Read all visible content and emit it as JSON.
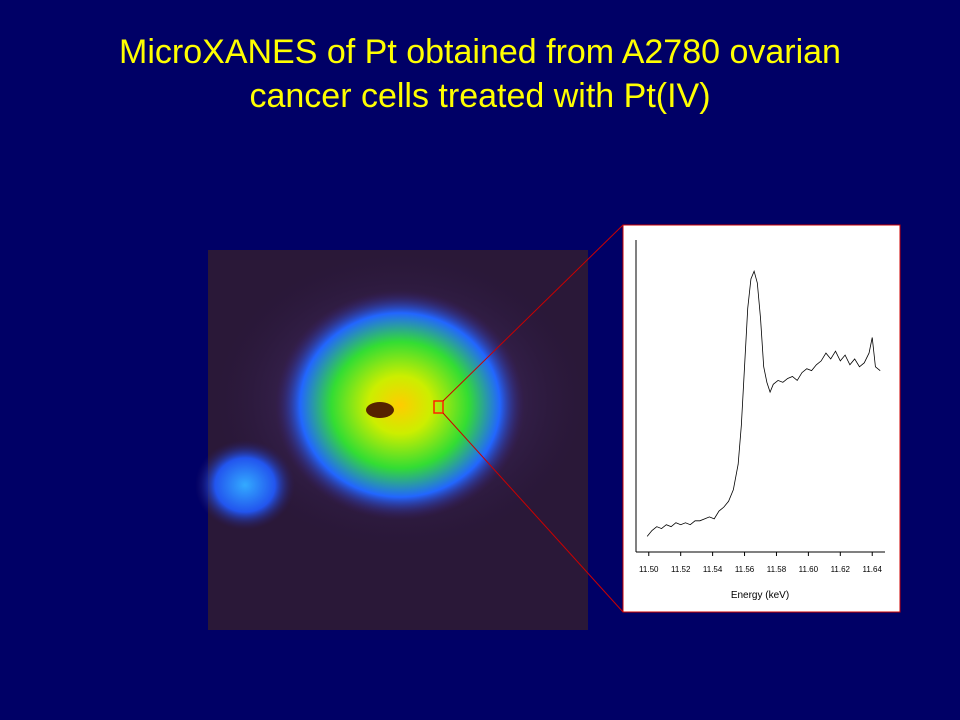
{
  "chart_data": {
    "type": "line",
    "title": "MicroXANES of Pt obtained from A2780 ovarian cancer cells treated with Pt(IV)",
    "x_label": "Energy (keV)",
    "x": [
      11.499,
      11.502,
      11.505,
      11.508,
      11.511,
      11.514,
      11.517,
      11.52,
      11.523,
      11.526,
      11.529,
      11.532,
      11.535,
      11.538,
      11.541,
      11.544,
      11.547,
      11.55,
      11.553,
      11.556,
      11.558,
      11.56,
      11.562,
      11.564,
      11.566,
      11.568,
      11.57,
      11.572,
      11.574,
      11.576,
      11.578,
      11.581,
      11.584,
      11.587,
      11.59,
      11.593,
      11.596,
      11.599,
      11.602,
      11.605,
      11.608,
      11.611,
      11.614,
      11.617,
      11.62,
      11.623,
      11.626,
      11.629,
      11.632,
      11.635,
      11.638,
      11.64,
      11.642,
      11.645
    ],
    "series": [
      {
        "color": "#000000",
        "values": [
          0.08,
          0.11,
          0.13,
          0.12,
          0.14,
          0.13,
          0.15,
          0.14,
          0.15,
          0.14,
          0.16,
          0.16,
          0.17,
          0.18,
          0.17,
          0.21,
          0.23,
          0.26,
          0.32,
          0.45,
          0.65,
          0.95,
          1.25,
          1.4,
          1.44,
          1.38,
          1.2,
          0.95,
          0.87,
          0.82,
          0.86,
          0.88,
          0.87,
          0.89,
          0.9,
          0.88,
          0.92,
          0.94,
          0.93,
          0.96,
          0.98,
          1.02,
          0.99,
          1.03,
          0.98,
          1.01,
          0.96,
          0.99,
          0.95,
          0.97,
          1.02,
          1.1,
          0.95,
          0.93
        ]
      }
    ],
    "xlim": [
      11.492,
      11.648
    ],
    "ylim": [
      0,
      1.6
    ],
    "xticks": [
      {
        "value": 11.5,
        "label": "11.50"
      },
      {
        "value": 11.52,
        "label": "11.52"
      },
      {
        "value": 11.54,
        "label": "11.54"
      },
      {
        "value": 11.56,
        "label": "11.56"
      },
      {
        "value": 11.58,
        "label": "11.58"
      },
      {
        "value": 11.6,
        "label": "11.60"
      },
      {
        "value": 11.62,
        "label": "11.62"
      },
      {
        "value": 11.64,
        "label": "11.64"
      }
    ]
  }
}
